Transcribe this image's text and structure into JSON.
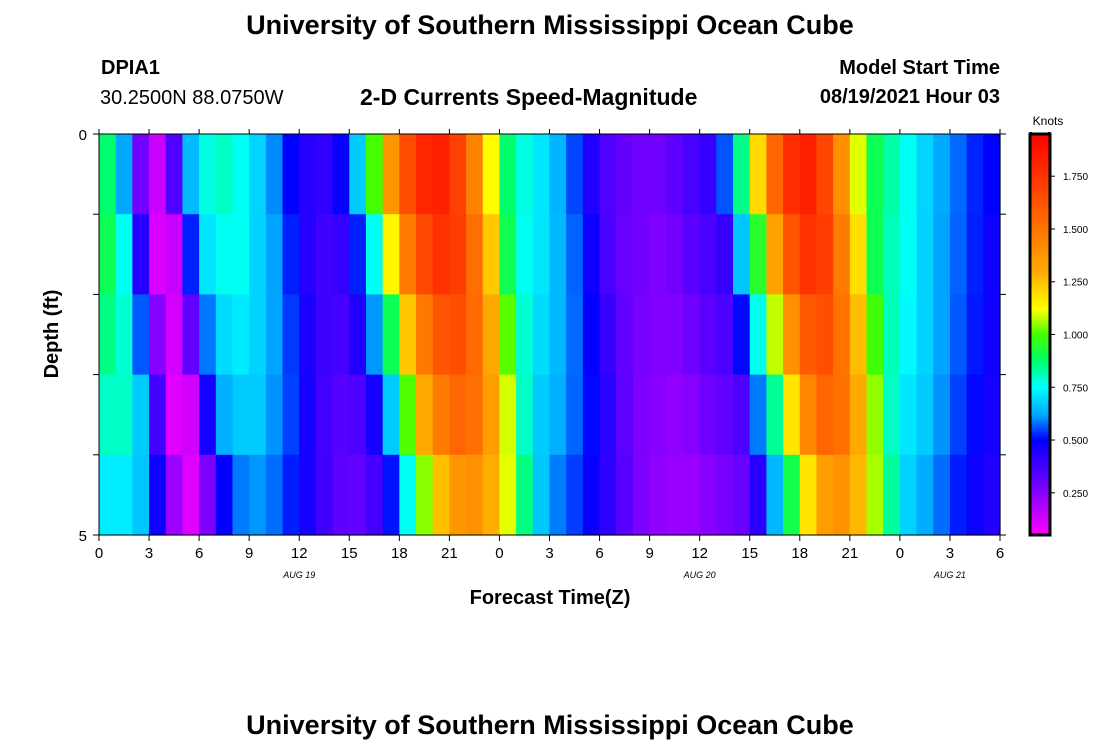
{
  "header": {
    "title": "University of Southern Mississippi Ocean Cube",
    "station": "DPIA1",
    "location": "30.2500N  88.0750W",
    "subtitle": "2-D Currents Speed-Magnitude",
    "model_label": "Model Start Time",
    "model_time": "08/19/2021 Hour 03"
  },
  "footer": {
    "title": "University of Southern Mississippi Ocean Cube"
  },
  "chart_data": {
    "type": "heatmap",
    "title": "2-D Currents Speed-Magnitude",
    "xlabel": "Forecast Time(Z)",
    "ylabel": "Depth (ft)",
    "x_unit": "hours since 08/19/2021 00Z",
    "xlim": [
      0,
      54
    ],
    "ylim": [
      0,
      5
    ],
    "x_tick_values": [
      0,
      3,
      6,
      9,
      12,
      15,
      18,
      21,
      24,
      27,
      30,
      33,
      36,
      39,
      42,
      45,
      48,
      51,
      54
    ],
    "x_tick_labels": [
      "0",
      "3",
      "6",
      "9",
      "12",
      "15",
      "18",
      "21",
      "0",
      "3",
      "6",
      "9",
      "12",
      "15",
      "18",
      "21",
      "0",
      "3",
      "6"
    ],
    "y_tick_values": [
      0,
      1,
      2,
      3,
      4,
      5
    ],
    "y_tick_labels": [
      "0",
      "",
      "",
      "",
      "",
      "5"
    ],
    "date_labels": [
      {
        "text": "AUG 19",
        "x": 12
      },
      {
        "text": "AUG 20",
        "x": 36
      },
      {
        "text": "AUG 21",
        "x": 51
      }
    ],
    "depth_bands": 5,
    "time_step_hours": 1,
    "speed_profile_surface_knots": [
      0.95,
      0.8,
      0.45,
      0.12,
      0.15,
      0.55,
      0.75,
      0.8,
      0.8,
      0.72,
      0.65,
      0.55,
      0.45,
      0.4,
      0.42,
      0.55,
      0.8,
      1.2,
      1.55,
      1.75,
      1.85,
      1.8,
      1.6,
      1.3,
      0.95,
      0.8,
      0.75,
      0.68,
      0.6,
      0.5,
      0.38,
      0.32,
      0.3,
      0.28,
      0.3,
      0.35,
      0.38,
      0.42,
      0.7,
      1.0,
      1.4,
      1.7,
      1.85,
      1.8,
      1.55,
      1.25,
      0.95,
      0.85,
      0.8,
      0.72,
      0.65,
      0.6,
      0.55,
      0.5
    ],
    "depth_attenuation": [
      1.0,
      0.95,
      0.9,
      0.84,
      0.76
    ],
    "depth_shift_hours": [
      0,
      0.5,
      1.0,
      1.5,
      2.0
    ],
    "colorbar": {
      "label": "Knots",
      "min": 0.05,
      "max": 1.95,
      "ticks": [
        "0.250",
        "0.500",
        "0.750",
        "1.000",
        "1.250",
        "1.500",
        "1.750"
      ],
      "tick_values": [
        0.25,
        0.5,
        0.75,
        1.0,
        1.25,
        1.5,
        1.75
      ],
      "stops": [
        {
          "value": 0.05,
          "color": "#ff00ff"
        },
        {
          "value": 0.3,
          "color": "#6a00ff"
        },
        {
          "value": 0.5,
          "color": "#0000ff"
        },
        {
          "value": 0.62,
          "color": "#00a8ff"
        },
        {
          "value": 0.75,
          "color": "#00ffff"
        },
        {
          "value": 0.88,
          "color": "#00ff66"
        },
        {
          "value": 1.0,
          "color": "#44ff00"
        },
        {
          "value": 1.12,
          "color": "#ffff00"
        },
        {
          "value": 1.3,
          "color": "#ffaa00"
        },
        {
          "value": 1.55,
          "color": "#ff6600"
        },
        {
          "value": 1.95,
          "color": "#ff0000"
        }
      ]
    }
  }
}
